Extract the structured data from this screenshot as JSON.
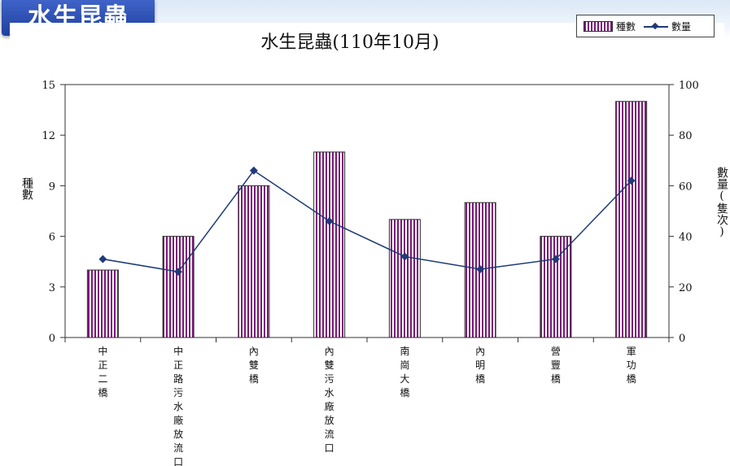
{
  "header": {
    "badge_title": "水生昆蟲"
  },
  "colors": {
    "bar_stripe": "#7a1a78",
    "line": "#1f3a78",
    "badge": "#2a4bb0"
  },
  "chart_data": {
    "type": "bar",
    "title": "水生昆蟲(110年10月)",
    "categories": [
      "中正二橋",
      "中正路污水廠放流口",
      "內雙橋",
      "內雙污水廠放流口",
      "南崗大橋",
      "內明橋",
      "營豐橋",
      "軍功橋"
    ],
    "series": [
      {
        "name": "種數",
        "type": "bar",
        "axis": "left",
        "values": [
          4,
          6,
          9,
          11,
          7,
          8,
          6,
          14
        ]
      },
      {
        "name": "數量",
        "type": "line",
        "axis": "right",
        "values": [
          31,
          26,
          66,
          46,
          32,
          27,
          31,
          62
        ]
      }
    ],
    "ylabel_left": "種數",
    "ylabel_right": "數量(隻次)",
    "ylim_left": [
      0,
      15
    ],
    "yticks_left": [
      0,
      3,
      6,
      9,
      12,
      15
    ],
    "ylim_right": [
      0,
      100
    ],
    "yticks_right": [
      0,
      20,
      40,
      60,
      80,
      100
    ],
    "legend": "top-right",
    "grid": false
  }
}
